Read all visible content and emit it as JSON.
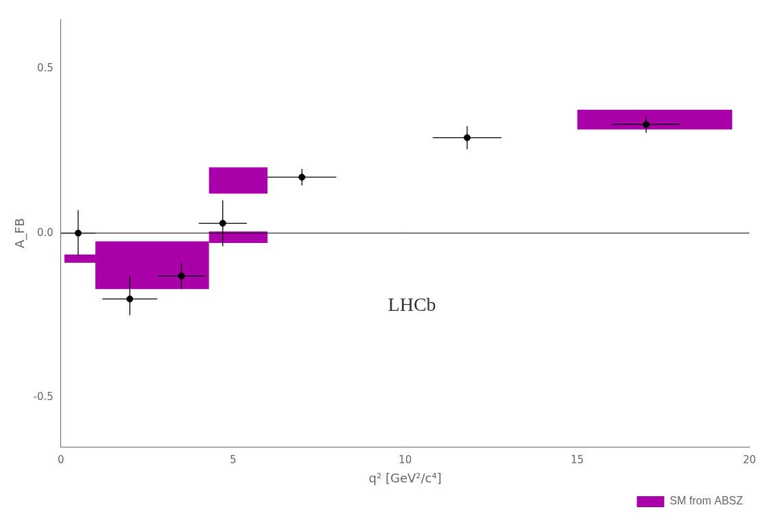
{
  "chart_data": {
    "type": "scatter",
    "x_label": "q² [GeV²/c⁴]",
    "y_label": "A_FB",
    "xlim": [
      0,
      20
    ],
    "xticks": [
      0,
      5,
      10,
      15,
      20
    ],
    "ylim": [
      -0.65,
      0.65
    ],
    "yticks": [
      -0.5,
      {
        "value": 0,
        "label": "0.0"
      },
      0.5
    ],
    "grid": false,
    "legend": "lower right",
    "series": [
      {
        "type": "scatter",
        "color": "black",
        "marker": "circle",
        "x": [
          0.5,
          2.0,
          3.5,
          4.7,
          7.0,
          11.8,
          17.0
        ],
        "values": [
          0.0,
          -0.2,
          -0.13,
          0.03,
          0.17,
          0.29,
          0.33
        ],
        "xerr_lo": [
          0.5,
          0.8,
          0.7,
          0.7,
          1.0,
          1.0,
          1.0
        ],
        "xerr_hi": [
          0.5,
          0.8,
          0.7,
          0.7,
          1.0,
          1.0,
          1.0
        ],
        "yerr_lo": [
          0.07,
          0.05,
          0.04,
          0.07,
          0.025,
          0.035,
          0.025
        ],
        "yerr_hi": [
          0.07,
          0.07,
          0.04,
          0.07,
          0.025,
          0.035,
          0.025
        ]
      },
      {
        "name": "SM from ABSZ",
        "type": "box",
        "color": "#AA00AA",
        "boxes": [
          {
            "x_lo": 0.1,
            "x_hi": 1.0,
            "y_lo": -0.09,
            "y_hi": -0.065
          },
          {
            "x_lo": 1.0,
            "x_hi": 4.3,
            "y_lo": -0.17,
            "y_hi": -0.025
          },
          {
            "x_lo": 4.3,
            "x_hi": 6.0,
            "y_lo": -0.03,
            "y_hi": 0.005
          },
          {
            "x_lo": 4.3,
            "x_hi": 6.0,
            "y_lo": 0.12,
            "y_hi": 0.2
          },
          {
            "x_lo": 15.0,
            "x_hi": 19.5,
            "y_lo": 0.315,
            "y_hi": 0.375
          }
        ]
      }
    ],
    "reference_line": {
      "y": 0,
      "color": "black"
    },
    "annotations": [
      {
        "text": "LHCb",
        "x": 9.5,
        "y": -0.22
      }
    ]
  }
}
